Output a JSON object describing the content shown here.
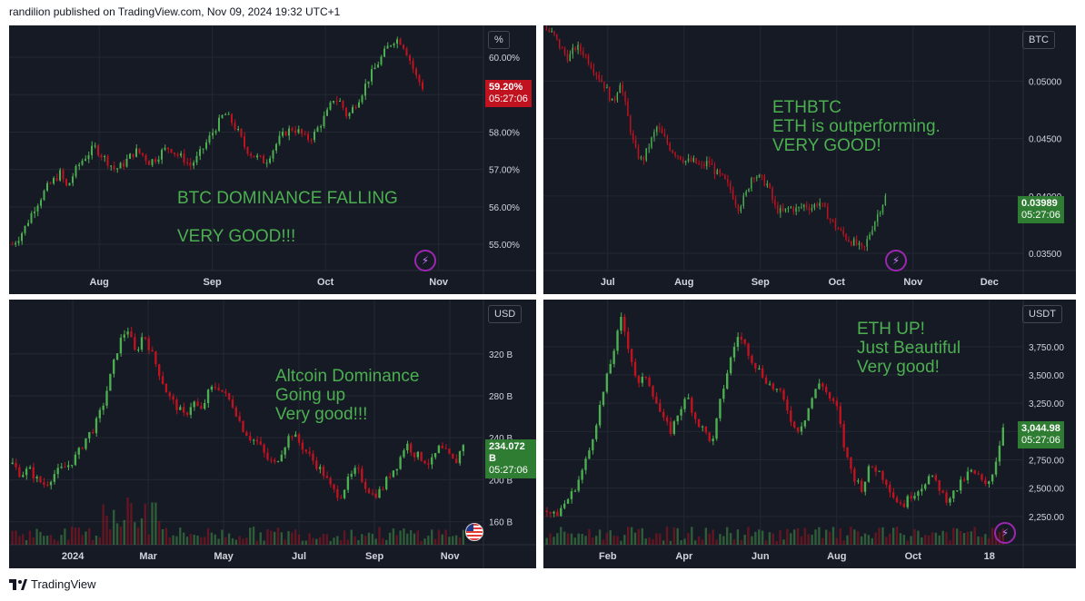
{
  "header": {
    "text": "randilion published on TradingView.com, Nov 09, 2024 19:32 UTC+1"
  },
  "footer": {
    "brand": "TradingView",
    "logo_icon": "tradingview-logo-icon"
  },
  "colors": {
    "up": "#4caf50",
    "down": "#c1121f",
    "bg": "#161a25",
    "grid": "#242832",
    "text": "#d1d4dc",
    "annotation": "#4caf50"
  },
  "chart_data": [
    {
      "id": "btc-dominance",
      "type": "candlestick",
      "title": "",
      "unit": "%",
      "annotation": "BTC DOMINANCE FALLING\n\nVERY GOOD!!!",
      "y_ticks": [
        "60.00%",
        "59.00%",
        "58.00%",
        "57.00%",
        "56.00%",
        "55.00%"
      ],
      "y_tick_values": [
        60,
        59,
        58,
        57,
        56,
        55
      ],
      "ylim": [
        54.3,
        60.8
      ],
      "x_ticks": [
        "Aug",
        "Sep",
        "Oct",
        "Nov"
      ],
      "last_price": "59.20%",
      "countdown": "05:27:06",
      "last_color": "down",
      "path_points": [
        55.0,
        55.2,
        55.5,
        55.9,
        56.2,
        56.5,
        56.7,
        56.9,
        56.5,
        56.9,
        57.2,
        57.4,
        57.6,
        57.4,
        57.2,
        57.0,
        57.1,
        57.3,
        57.5,
        57.4,
        57.2,
        57.3,
        57.5,
        57.6,
        57.4,
        57.3,
        57.1,
        57.3,
        57.6,
        57.9,
        58.2,
        58.5,
        58.3,
        58.0,
        57.6,
        57.4,
        57.3,
        57.2,
        57.5,
        57.8,
        58.0,
        58.1,
        58.0,
        57.8,
        57.9,
        58.2,
        58.5,
        58.9,
        58.8,
        58.4,
        58.7,
        59.0,
        59.4,
        59.7,
        60.0,
        60.3,
        60.5,
        60.4,
        60.0,
        59.5,
        59.2
      ]
    },
    {
      "id": "ethbtc",
      "type": "candlestick",
      "title": "",
      "unit": "BTC",
      "annotation": "ETHBTC\nETH is outperforming.\nVERY GOOD!",
      "y_ticks": [
        "0.05000",
        "0.04500",
        "0.04000",
        "0.03500"
      ],
      "y_tick_values": [
        0.05,
        0.045,
        0.04,
        0.035
      ],
      "ylim": [
        0.0335,
        0.0547
      ],
      "x_ticks": [
        "Jul",
        "Aug",
        "Sep",
        "Oct",
        "Nov",
        "Dec"
      ],
      "last_price": "0.03989",
      "countdown": "05:27:06",
      "last_color": "up",
      "path_points": [
        0.0545,
        0.054,
        0.0528,
        0.052,
        0.053,
        0.0525,
        0.0515,
        0.0505,
        0.0495,
        0.048,
        0.05,
        0.047,
        0.044,
        0.043,
        0.0445,
        0.046,
        0.045,
        0.044,
        0.0435,
        0.043,
        0.043,
        0.0425,
        0.043,
        0.042,
        0.0415,
        0.0405,
        0.039,
        0.04,
        0.042,
        0.0415,
        0.041,
        0.039,
        0.0385,
        0.039,
        0.0388,
        0.0392,
        0.039,
        0.0395,
        0.0385,
        0.0375,
        0.0368,
        0.0362,
        0.0358,
        0.0352,
        0.037,
        0.0385,
        0.0399
      ]
    },
    {
      "id": "altcoin-dominance",
      "type": "candlestick",
      "title": "",
      "unit": "USD",
      "annotation": "Altcoin Dominance\nGoing up\nVery good!!!",
      "y_ticks": [
        "320 B",
        "280 B",
        "240 B",
        "200 B",
        "160 B"
      ],
      "y_tick_values": [
        320,
        280,
        240,
        200,
        160
      ],
      "ylim": [
        138,
        370
      ],
      "x_ticks": [
        "2024",
        "Mar",
        "May",
        "Jul",
        "Sep",
        "Nov"
      ],
      "last_price": "234.072 B",
      "countdown": "05:27:06",
      "last_color": "up",
      "path_points": [
        215,
        205,
        210,
        200,
        195,
        205,
        210,
        215,
        225,
        240,
        250,
        270,
        300,
        330,
        345,
        320,
        340,
        320,
        300,
        280,
        270,
        260,
        275,
        265,
        285,
        290,
        280,
        270,
        250,
        240,
        235,
        220,
        215,
        230,
        245,
        235,
        225,
        215,
        205,
        190,
        185,
        200,
        210,
        195,
        185,
        190,
        205,
        215,
        235,
        225,
        220,
        215,
        230,
        225,
        215,
        235
      ],
      "volume": true
    },
    {
      "id": "eth-usdt",
      "type": "candlestick",
      "title": "",
      "unit": "USDT",
      "annotation": "ETH UP!\nJust Beautiful\nVery good!",
      "y_ticks": [
        "3,750.00",
        "3,500.00",
        "3,250.00",
        "3,000.00",
        "2,750.00",
        "2,500.00",
        "2,250.00"
      ],
      "y_tick_values": [
        3750,
        3500,
        3250,
        3000,
        2750,
        2500,
        2250
      ],
      "ylim": [
        2000,
        4150
      ],
      "x_ticks": [
        "Feb",
        "Apr",
        "Jun",
        "Aug",
        "Oct",
        "18"
      ],
      "last_price": "3,044.98",
      "countdown": "05:27:06",
      "last_color": "up",
      "path_points": [
        2300,
        2250,
        2350,
        2450,
        2600,
        2800,
        3100,
        3400,
        3700,
        4000,
        3700,
        3400,
        3500,
        3300,
        3100,
        3000,
        3200,
        3300,
        3100,
        3000,
        2900,
        3300,
        3600,
        3850,
        3750,
        3600,
        3500,
        3400,
        3350,
        3200,
        3000,
        3100,
        3300,
        3450,
        3300,
        3200,
        2800,
        2600,
        2500,
        2700,
        2650,
        2550,
        2400,
        2350,
        2450,
        2500,
        2600,
        2550,
        2400,
        2450,
        2550,
        2650,
        2600,
        2500,
        2700,
        3045
      ],
      "volume": true
    }
  ]
}
